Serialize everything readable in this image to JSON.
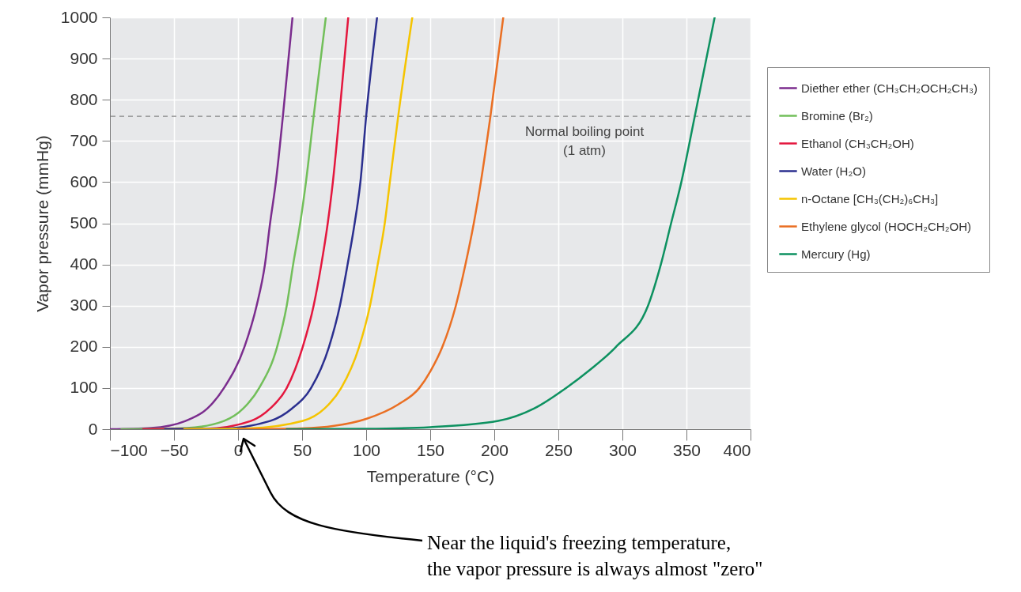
{
  "chart_data": {
    "type": "line",
    "xlabel": "Temperature (°C)",
    "ylabel": "Vapor pressure (mmHg)",
    "xlim": [
      -100,
      400
    ],
    "xticks": [
      -100,
      -50,
      0,
      50,
      100,
      150,
      200,
      250,
      300,
      350,
      400
    ],
    "ylim": [
      0,
      1000
    ],
    "yticks": [
      0,
      100,
      200,
      300,
      400,
      500,
      600,
      700,
      800,
      900,
      1000
    ],
    "grid": true,
    "legend": "right",
    "series": [
      {
        "name": "Diether ether (CH₃CH₂OCH₂CH₃)",
        "color": "#7b2d8e",
        "x": [
          -100,
          -68,
          -41,
          -24,
          -11,
          5,
          14.5,
          21,
          25,
          29.5,
          35,
          42.5
        ],
        "values": [
          0,
          3,
          20,
          50,
          100,
          200,
          300,
          400,
          500,
          600,
          760,
          1000
        ]
      },
      {
        "name": "Bromine (Br₂)",
        "color": "#72bf5a",
        "x": [
          -91,
          -40,
          -11,
          4,
          16.5,
          30.5,
          38,
          43,
          48.5,
          53,
          59,
          68.5
        ],
        "values": [
          0,
          3,
          20,
          50,
          100,
          200,
          300,
          400,
          500,
          600,
          760,
          1000
        ]
      },
      {
        "name": "Ethanol (CH₃CH₂OH)",
        "color": "#e4173e",
        "x": [
          -74,
          -26,
          10,
          25,
          38,
          50.5,
          59,
          65,
          70,
          74,
          79,
          86
        ],
        "values": [
          0,
          1,
          20,
          50,
          100,
          200,
          300,
          400,
          500,
          600,
          760,
          1000
        ]
      },
      {
        "name": "Water (H₂O)",
        "color": "#2b2f8f",
        "x": [
          -57,
          -15,
          25,
          42,
          57,
          71,
          79.5,
          85.5,
          91,
          95.5,
          100,
          108.5
        ],
        "values": [
          0,
          1,
          20,
          50,
          100,
          200,
          300,
          400,
          500,
          600,
          760,
          1000
        ]
      },
      {
        "name": "n-Octane [CH₃(CH₂)₆CH₃]",
        "color": "#f5c400",
        "x": [
          -42,
          8,
          50.5,
          67.5,
          80.5,
          94.5,
          103,
          109,
          114.5,
          118.5,
          125,
          136
        ],
        "values": [
          0,
          2,
          20,
          50,
          100,
          200,
          300,
          400,
          500,
          600,
          760,
          1000
        ]
      },
      {
        "name": "Ethylene glycol (HOCH₂CH₂OH)",
        "color": "#ea6f23",
        "x": [
          0,
          50,
          75,
          100,
          125,
          141.5,
          150,
          159.5,
          170,
          177.5,
          184,
          189.5,
          197,
          207
        ],
        "values": [
          0,
          2,
          8,
          25,
          60,
          100,
          140,
          200,
          300,
          400,
          500,
          600,
          760,
          1000
        ]
      },
      {
        "name": "Mercury (Hg)",
        "color": "#0d9160",
        "x": [
          38,
          100,
          150,
          203,
          231,
          256,
          275,
          295,
          320,
          330,
          338,
          346,
          356.5,
          372
        ],
        "values": [
          0,
          1,
          5,
          20,
          50,
          100,
          145,
          200,
          300,
          400,
          500,
          600,
          760,
          1000
        ]
      }
    ],
    "ref_lines": [
      {
        "axis": "y",
        "value": 760,
        "label": "Normal boiling point (1 atm)",
        "color": "#888888",
        "line_style": "dashed"
      }
    ],
    "annotations": [
      "Near the liquid's freezing temperature, the vapor pressure is always almost \"zero\""
    ]
  }
}
